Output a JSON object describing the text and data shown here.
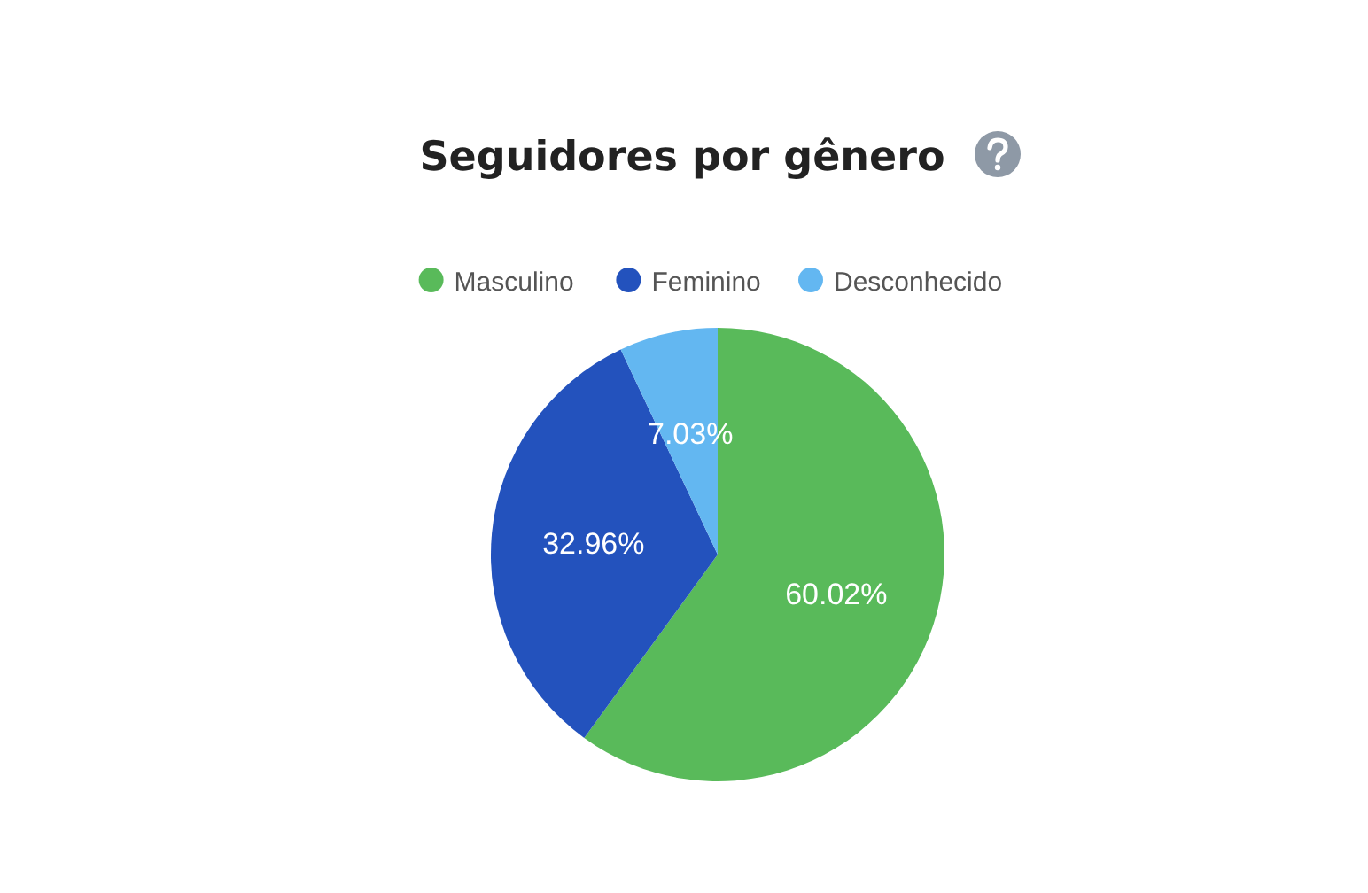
{
  "chart_data": {
    "type": "pie",
    "title": "Seguidores por gênero",
    "categories": [
      "Masculino",
      "Feminino",
      "Desconhecido"
    ],
    "values": [
      60.02,
      32.96,
      7.03
    ],
    "colors": [
      "#59ba5a",
      "#2352bd",
      "#63b7f1"
    ],
    "value_labels": [
      "60.02%",
      "32.96%",
      "7.03%"
    ],
    "legend": "top"
  }
}
